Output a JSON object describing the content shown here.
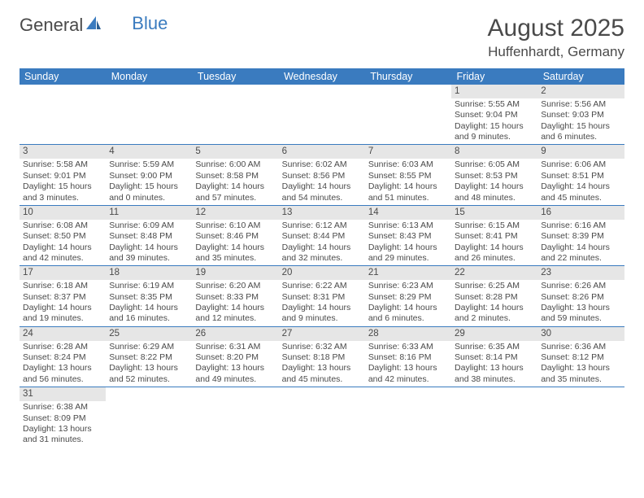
{
  "colors": {
    "header_bg": "#3a7bbf",
    "header_text": "#ffffff",
    "daynum_bg": "#e6e6e6",
    "body_text": "#4a4a4a",
    "row_divider": "#3a7bbf",
    "page_bg": "#ffffff",
    "logo_blue": "#3a7bbf"
  },
  "logo": {
    "part1": "General",
    "part2": "Blue"
  },
  "title": "August 2025",
  "location": "Huffenhardt, Germany",
  "weekdays": [
    "Sunday",
    "Monday",
    "Tuesday",
    "Wednesday",
    "Thursday",
    "Friday",
    "Saturday"
  ],
  "weeks": [
    [
      null,
      null,
      null,
      null,
      null,
      {
        "n": "1",
        "sr": "Sunrise: 5:55 AM",
        "ss": "Sunset: 9:04 PM",
        "d1": "Daylight: 15 hours",
        "d2": "and 9 minutes."
      },
      {
        "n": "2",
        "sr": "Sunrise: 5:56 AM",
        "ss": "Sunset: 9:03 PM",
        "d1": "Daylight: 15 hours",
        "d2": "and 6 minutes."
      }
    ],
    [
      {
        "n": "3",
        "sr": "Sunrise: 5:58 AM",
        "ss": "Sunset: 9:01 PM",
        "d1": "Daylight: 15 hours",
        "d2": "and 3 minutes."
      },
      {
        "n": "4",
        "sr": "Sunrise: 5:59 AM",
        "ss": "Sunset: 9:00 PM",
        "d1": "Daylight: 15 hours",
        "d2": "and 0 minutes."
      },
      {
        "n": "5",
        "sr": "Sunrise: 6:00 AM",
        "ss": "Sunset: 8:58 PM",
        "d1": "Daylight: 14 hours",
        "d2": "and 57 minutes."
      },
      {
        "n": "6",
        "sr": "Sunrise: 6:02 AM",
        "ss": "Sunset: 8:56 PM",
        "d1": "Daylight: 14 hours",
        "d2": "and 54 minutes."
      },
      {
        "n": "7",
        "sr": "Sunrise: 6:03 AM",
        "ss": "Sunset: 8:55 PM",
        "d1": "Daylight: 14 hours",
        "d2": "and 51 minutes."
      },
      {
        "n": "8",
        "sr": "Sunrise: 6:05 AM",
        "ss": "Sunset: 8:53 PM",
        "d1": "Daylight: 14 hours",
        "d2": "and 48 minutes."
      },
      {
        "n": "9",
        "sr": "Sunrise: 6:06 AM",
        "ss": "Sunset: 8:51 PM",
        "d1": "Daylight: 14 hours",
        "d2": "and 45 minutes."
      }
    ],
    [
      {
        "n": "10",
        "sr": "Sunrise: 6:08 AM",
        "ss": "Sunset: 8:50 PM",
        "d1": "Daylight: 14 hours",
        "d2": "and 42 minutes."
      },
      {
        "n": "11",
        "sr": "Sunrise: 6:09 AM",
        "ss": "Sunset: 8:48 PM",
        "d1": "Daylight: 14 hours",
        "d2": "and 39 minutes."
      },
      {
        "n": "12",
        "sr": "Sunrise: 6:10 AM",
        "ss": "Sunset: 8:46 PM",
        "d1": "Daylight: 14 hours",
        "d2": "and 35 minutes."
      },
      {
        "n": "13",
        "sr": "Sunrise: 6:12 AM",
        "ss": "Sunset: 8:44 PM",
        "d1": "Daylight: 14 hours",
        "d2": "and 32 minutes."
      },
      {
        "n": "14",
        "sr": "Sunrise: 6:13 AM",
        "ss": "Sunset: 8:43 PM",
        "d1": "Daylight: 14 hours",
        "d2": "and 29 minutes."
      },
      {
        "n": "15",
        "sr": "Sunrise: 6:15 AM",
        "ss": "Sunset: 8:41 PM",
        "d1": "Daylight: 14 hours",
        "d2": "and 26 minutes."
      },
      {
        "n": "16",
        "sr": "Sunrise: 6:16 AM",
        "ss": "Sunset: 8:39 PM",
        "d1": "Daylight: 14 hours",
        "d2": "and 22 minutes."
      }
    ],
    [
      {
        "n": "17",
        "sr": "Sunrise: 6:18 AM",
        "ss": "Sunset: 8:37 PM",
        "d1": "Daylight: 14 hours",
        "d2": "and 19 minutes."
      },
      {
        "n": "18",
        "sr": "Sunrise: 6:19 AM",
        "ss": "Sunset: 8:35 PM",
        "d1": "Daylight: 14 hours",
        "d2": "and 16 minutes."
      },
      {
        "n": "19",
        "sr": "Sunrise: 6:20 AM",
        "ss": "Sunset: 8:33 PM",
        "d1": "Daylight: 14 hours",
        "d2": "and 12 minutes."
      },
      {
        "n": "20",
        "sr": "Sunrise: 6:22 AM",
        "ss": "Sunset: 8:31 PM",
        "d1": "Daylight: 14 hours",
        "d2": "and 9 minutes."
      },
      {
        "n": "21",
        "sr": "Sunrise: 6:23 AM",
        "ss": "Sunset: 8:29 PM",
        "d1": "Daylight: 14 hours",
        "d2": "and 6 minutes."
      },
      {
        "n": "22",
        "sr": "Sunrise: 6:25 AM",
        "ss": "Sunset: 8:28 PM",
        "d1": "Daylight: 14 hours",
        "d2": "and 2 minutes."
      },
      {
        "n": "23",
        "sr": "Sunrise: 6:26 AM",
        "ss": "Sunset: 8:26 PM",
        "d1": "Daylight: 13 hours",
        "d2": "and 59 minutes."
      }
    ],
    [
      {
        "n": "24",
        "sr": "Sunrise: 6:28 AM",
        "ss": "Sunset: 8:24 PM",
        "d1": "Daylight: 13 hours",
        "d2": "and 56 minutes."
      },
      {
        "n": "25",
        "sr": "Sunrise: 6:29 AM",
        "ss": "Sunset: 8:22 PM",
        "d1": "Daylight: 13 hours",
        "d2": "and 52 minutes."
      },
      {
        "n": "26",
        "sr": "Sunrise: 6:31 AM",
        "ss": "Sunset: 8:20 PM",
        "d1": "Daylight: 13 hours",
        "d2": "and 49 minutes."
      },
      {
        "n": "27",
        "sr": "Sunrise: 6:32 AM",
        "ss": "Sunset: 8:18 PM",
        "d1": "Daylight: 13 hours",
        "d2": "and 45 minutes."
      },
      {
        "n": "28",
        "sr": "Sunrise: 6:33 AM",
        "ss": "Sunset: 8:16 PM",
        "d1": "Daylight: 13 hours",
        "d2": "and 42 minutes."
      },
      {
        "n": "29",
        "sr": "Sunrise: 6:35 AM",
        "ss": "Sunset: 8:14 PM",
        "d1": "Daylight: 13 hours",
        "d2": "and 38 minutes."
      },
      {
        "n": "30",
        "sr": "Sunrise: 6:36 AM",
        "ss": "Sunset: 8:12 PM",
        "d1": "Daylight: 13 hours",
        "d2": "and 35 minutes."
      }
    ],
    [
      {
        "n": "31",
        "sr": "Sunrise: 6:38 AM",
        "ss": "Sunset: 8:09 PM",
        "d1": "Daylight: 13 hours",
        "d2": "and 31 minutes."
      },
      null,
      null,
      null,
      null,
      null,
      null
    ]
  ]
}
